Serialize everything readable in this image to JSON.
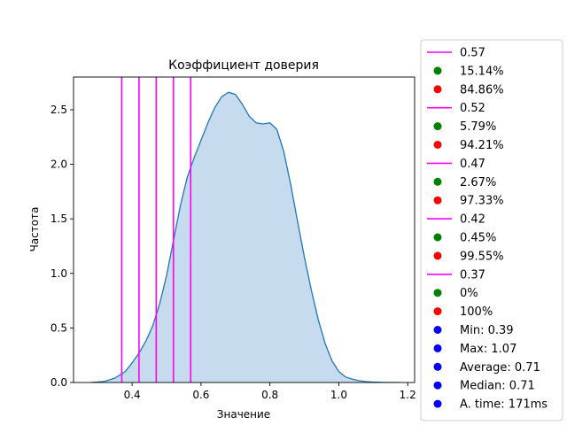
{
  "chart_data": {
    "type": "area",
    "title": "Коэффициент доверия",
    "xlabel": "Значение",
    "ylabel": "Частота",
    "xlim": [
      0.23,
      1.22
    ],
    "ylim": [
      0,
      2.8
    ],
    "x_ticks": [
      0.4,
      0.6,
      0.8,
      1.0,
      1.2
    ],
    "x_tick_labels": [
      "0.4",
      "0.6",
      "0.8",
      "1.0",
      "1.2"
    ],
    "y_ticks": [
      0.0,
      0.5,
      1.0,
      1.5,
      2.0,
      2.5
    ],
    "y_tick_labels": [
      "0.0",
      "0.5",
      "1.0",
      "1.5",
      "2.0",
      "2.5"
    ],
    "grid": false,
    "legend_position": "outside-right",
    "fill_color": "#c6dbed",
    "line_color": "#1f77b4",
    "vline_color": "#ff00ff",
    "density": {
      "x": [
        0.28,
        0.32,
        0.35,
        0.38,
        0.4,
        0.42,
        0.44,
        0.46,
        0.48,
        0.5,
        0.52,
        0.54,
        0.56,
        0.58,
        0.6,
        0.62,
        0.64,
        0.66,
        0.68,
        0.7,
        0.72,
        0.74,
        0.76,
        0.78,
        0.8,
        0.82,
        0.84,
        0.86,
        0.88,
        0.9,
        0.92,
        0.94,
        0.96,
        0.98,
        1.0,
        1.02,
        1.04,
        1.06,
        1.08,
        1.1,
        1.13,
        1.16,
        1.18
      ],
      "y": [
        0.0,
        0.01,
        0.04,
        0.1,
        0.18,
        0.27,
        0.38,
        0.52,
        0.72,
        0.98,
        1.3,
        1.62,
        1.88,
        2.06,
        2.22,
        2.38,
        2.52,
        2.62,
        2.66,
        2.64,
        2.55,
        2.44,
        2.38,
        2.37,
        2.38,
        2.32,
        2.12,
        1.82,
        1.48,
        1.15,
        0.85,
        0.58,
        0.36,
        0.2,
        0.1,
        0.05,
        0.03,
        0.015,
        0.008,
        0.004,
        0.001,
        0.0,
        0.0
      ]
    },
    "vlines": [
      0.37,
      0.42,
      0.47,
      0.52,
      0.57
    ],
    "legend": [
      {
        "kind": "line",
        "color": "#ff00ff",
        "label": "0.57"
      },
      {
        "kind": "dot",
        "color": "#008000",
        "label": "15.14%"
      },
      {
        "kind": "dot",
        "color": "#ff0000",
        "label": "84.86%"
      },
      {
        "kind": "line",
        "color": "#ff00ff",
        "label": "0.52"
      },
      {
        "kind": "dot",
        "color": "#008000",
        "label": "5.79%"
      },
      {
        "kind": "dot",
        "color": "#ff0000",
        "label": "94.21%"
      },
      {
        "kind": "line",
        "color": "#ff00ff",
        "label": "0.47"
      },
      {
        "kind": "dot",
        "color": "#008000",
        "label": "2.67%"
      },
      {
        "kind": "dot",
        "color": "#ff0000",
        "label": "97.33%"
      },
      {
        "kind": "line",
        "color": "#ff00ff",
        "label": "0.42"
      },
      {
        "kind": "dot",
        "color": "#008000",
        "label": "0.45%"
      },
      {
        "kind": "dot",
        "color": "#ff0000",
        "label": "99.55%"
      },
      {
        "kind": "line",
        "color": "#ff00ff",
        "label": "0.37"
      },
      {
        "kind": "dot",
        "color": "#008000",
        "label": "0%"
      },
      {
        "kind": "dot",
        "color": "#ff0000",
        "label": "100%"
      },
      {
        "kind": "dot",
        "color": "#0000ff",
        "label": "Min: 0.39"
      },
      {
        "kind": "dot",
        "color": "#0000ff",
        "label": "Max: 1.07"
      },
      {
        "kind": "dot",
        "color": "#0000ff",
        "label": "Average: 0.71"
      },
      {
        "kind": "dot",
        "color": "#0000ff",
        "label": "Median: 0.71"
      },
      {
        "kind": "dot",
        "color": "#0000ff",
        "label": "A. time: 171ms"
      }
    ]
  }
}
